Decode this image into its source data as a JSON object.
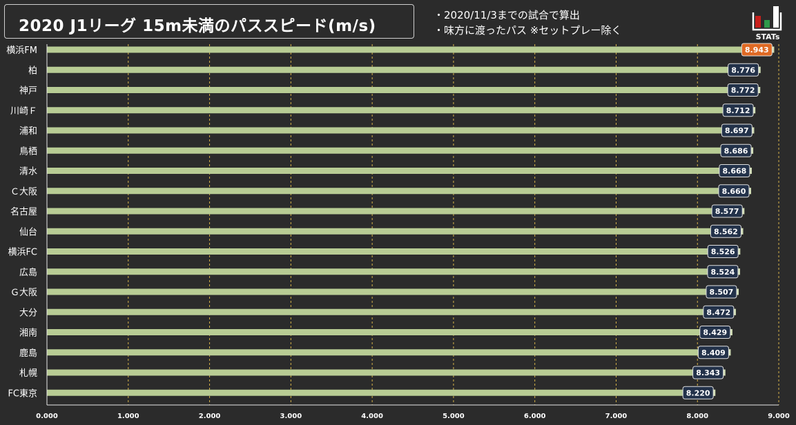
{
  "header": {
    "title": "2020 J1リーグ 15m未満のパススピード(m/s)",
    "notes": [
      "・2020/11/3までの試合で算出",
      "・味方に渡ったパス ※セットプレー除く"
    ],
    "logo_text": "STATs"
  },
  "colors": {
    "background": "#2b2b2b",
    "bar": "#b8cc94",
    "bar_end": "#d3dfb8",
    "label_box": "#23324a",
    "highlight_box": "#e06a24",
    "grid": "#d8b44a",
    "logo_red": "#c8201c",
    "logo_green": "#2e9a4a"
  },
  "chart_data": {
    "type": "bar",
    "orientation": "horizontal",
    "categories": [
      "横浜FM",
      "柏",
      "神戸",
      "川崎Ｆ",
      "浦和",
      "鳥栖",
      "清水",
      "Ｃ大阪",
      "名古屋",
      "仙台",
      "横浜FC",
      "広島",
      "Ｇ大阪",
      "大分",
      "湘南",
      "鹿島",
      "札幌",
      "FC東京"
    ],
    "values": [
      8.943,
      8.776,
      8.772,
      8.712,
      8.697,
      8.686,
      8.668,
      8.66,
      8.577,
      8.562,
      8.526,
      8.524,
      8.507,
      8.472,
      8.429,
      8.409,
      8.343,
      8.22
    ],
    "value_labels": [
      "8.943",
      "8.776",
      "8.772",
      "8.712",
      "8.697",
      "8.686",
      "8.668",
      "8.660",
      "8.577",
      "8.562",
      "8.526",
      "8.524",
      "8.507",
      "8.472",
      "8.429",
      "8.409",
      "8.343",
      "8.220"
    ],
    "highlight_index": 0,
    "xlim": [
      0,
      9
    ],
    "x_ticks": [
      0,
      1,
      2,
      3,
      4,
      5,
      6,
      7,
      8,
      9
    ],
    "x_tick_labels": [
      "0.000",
      "1.000",
      "2.000",
      "3.000",
      "4.000",
      "5.000",
      "6.000",
      "7.000",
      "8.000",
      "9.000"
    ],
    "grid": true,
    "xlabel": "",
    "ylabel": ""
  }
}
